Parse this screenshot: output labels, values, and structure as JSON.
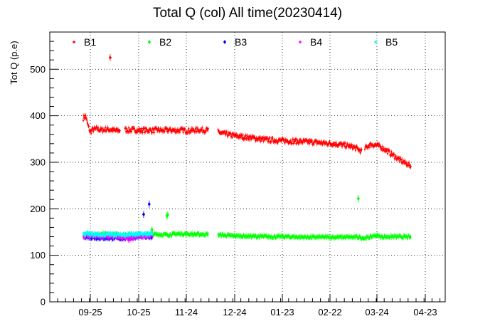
{
  "chart_data": {
    "type": "scatter",
    "title": "Total Q (col) All time(20230414)",
    "xlabel": "",
    "ylabel": "Tot Q (p.e)",
    "ylim": [
      0,
      580
    ],
    "y_ticks": [
      0,
      100,
      200,
      300,
      400,
      500
    ],
    "x_ticks": [
      "09-25",
      "10-25",
      "11-24",
      "12-24",
      "01-23",
      "02-22",
      "03-24",
      "04-23"
    ],
    "grid": true,
    "legend": "top",
    "series": [
      {
        "name": "B1",
        "color": "#ff0000",
        "marker": "circle",
        "segments": [
          [
            [
              0.0,
              395
            ],
            [
              0.25,
              400
            ],
            [
              0.5,
              380
            ],
            [
              0.75,
              365
            ],
            [
              1.0,
              370
            ],
            [
              1.5,
              372
            ],
            [
              2,
              369
            ],
            [
              2.5,
              371
            ],
            [
              3,
              370
            ],
            [
              3.5,
              368
            ],
            [
              4,
              369
            ]
          ],
          [
            [
              4.5,
              370
            ],
            [
              5,
              369
            ],
            [
              5.5,
              370
            ],
            [
              6,
              368
            ],
            [
              6.5,
              369
            ],
            [
              7,
              369
            ],
            [
              7.5,
              368
            ],
            [
              8,
              370
            ],
            [
              8.5,
              368
            ],
            [
              9,
              369
            ],
            [
              9.5,
              369
            ],
            [
              10,
              368
            ],
            [
              10.5,
              369
            ],
            [
              11,
              368
            ],
            [
              11.5,
              368
            ],
            [
              12,
              369
            ],
            [
              12.5,
              370
            ],
            [
              13,
              369
            ],
            [
              13.5,
              369
            ]
          ],
          [
            [
              14.5,
              365
            ],
            [
              15,
              362
            ],
            [
              15.5,
              360
            ],
            [
              16,
              358
            ],
            [
              17,
              355
            ],
            [
              18,
              353
            ],
            [
              19,
              350
            ],
            [
              20,
              348
            ],
            [
              21,
              347
            ],
            [
              22,
              346
            ],
            [
              23,
              345
            ],
            [
              24,
              344
            ],
            [
              25,
              343
            ],
            [
              26,
              341
            ],
            [
              27,
              340
            ],
            [
              28,
              337
            ],
            [
              29,
              333
            ],
            [
              29.5,
              329
            ],
            [
              30,
              322
            ]
          ],
          [
            [
              30.3,
              330
            ],
            [
              30.6,
              335
            ],
            [
              31,
              338
            ],
            [
              31.5,
              337
            ],
            [
              32,
              333
            ],
            [
              32.5,
              327
            ],
            [
              33,
              320
            ],
            [
              33.5,
              313
            ],
            [
              34,
              306
            ],
            [
              34.5,
              300
            ],
            [
              35,
              295
            ],
            [
              35.3,
              290
            ]
          ]
        ],
        "outliers": [
          [
            2.9,
            525
          ]
        ]
      },
      {
        "name": "B2",
        "color": "#00ff00",
        "marker": "diamond",
        "segments": [
          [
            [
              0.0,
              145
            ],
            [
              1,
              145
            ],
            [
              2,
              145
            ],
            [
              3,
              145
            ],
            [
              4,
              144
            ],
            [
              5,
              145
            ],
            [
              6,
              145
            ],
            [
              7,
              145
            ],
            [
              8,
              145
            ],
            [
              9,
              144
            ],
            [
              10,
              146
            ],
            [
              11,
              146
            ],
            [
              12,
              145
            ],
            [
              13,
              145
            ],
            [
              13.5,
              145
            ]
          ],
          [
            [
              14.5,
              144
            ],
            [
              16,
              142
            ],
            [
              18,
              141
            ],
            [
              20,
              140
            ],
            [
              22,
              140
            ],
            [
              24,
              139
            ],
            [
              26,
              139
            ],
            [
              28,
              139
            ],
            [
              29.5,
              139
            ],
            [
              30.3,
              137
            ],
            [
              31,
              140
            ],
            [
              31.5,
              143
            ],
            [
              32,
              140
            ],
            [
              33,
              140
            ],
            [
              34,
              140
            ],
            [
              35.3,
              139
            ]
          ]
        ],
        "outliers": [
          [
            9.0,
            185
          ],
          [
            9.1,
            187
          ],
          [
            29.6,
            222
          ],
          [
            7.4,
            155
          ]
        ]
      },
      {
        "name": "B3",
        "color": "#0000ff",
        "marker": "diamond",
        "segments": [
          [
            [
              0.0,
              140
            ],
            [
              1,
              138
            ],
            [
              2,
              137
            ],
            [
              3,
              137
            ],
            [
              4,
              136
            ],
            [
              5,
              137
            ],
            [
              6,
              140
            ],
            [
              7,
              139
            ],
            [
              7.5,
              140
            ]
          ]
        ],
        "outliers": [
          [
            6.5,
            188
          ],
          [
            7.1,
            210
          ]
        ]
      },
      {
        "name": "B4",
        "color": "#ff00ff",
        "marker": "circle",
        "segments": [
          [
            [
              0.0,
              142
            ],
            [
              1,
              141
            ],
            [
              2,
              140
            ],
            [
              3,
              140
            ],
            [
              4,
              139
            ],
            [
              5,
              134
            ],
            [
              6,
              142
            ],
            [
              7,
              141
            ],
            [
              7.5,
              142
            ]
          ]
        ],
        "outliers": []
      },
      {
        "name": "B5",
        "color": "#00ffff",
        "marker": "circle",
        "segments": [
          [
            [
              0.0,
              146
            ],
            [
              1,
              145
            ],
            [
              2,
              144
            ],
            [
              3,
              145
            ],
            [
              4,
              144
            ],
            [
              5,
              145
            ],
            [
              6,
              145
            ],
            [
              7,
              146
            ],
            [
              7.5,
              145
            ]
          ]
        ],
        "outliers": []
      }
    ]
  }
}
